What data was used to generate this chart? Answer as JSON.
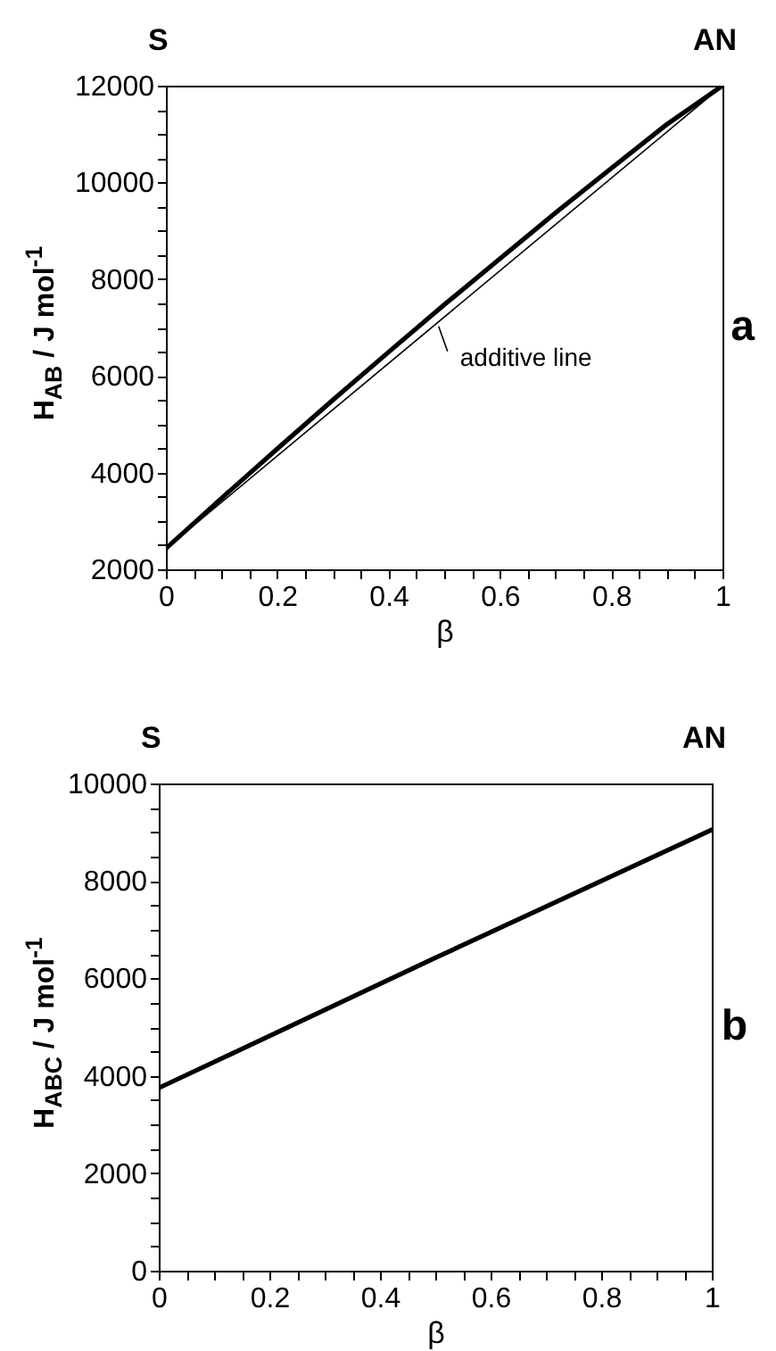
{
  "chart_data": [
    {
      "type": "line",
      "title": "a",
      "xlabel": "β",
      "ylabel": "H$_{AB}$ / J mol$^{-1}$",
      "series": [
        {
          "color": "#000000",
          "x": [
            0,
            0.1,
            0.2,
            0.3,
            0.4,
            0.5,
            0.6,
            0.7,
            0.8,
            0.9,
            1
          ],
          "values": [
            2430,
            3470,
            4490,
            5500,
            6490,
            7470,
            8420,
            9370,
            10290,
            11200,
            12000
          ]
        },
        {
          "color": "#000000",
          "x": [
            0,
            1
          ],
          "values": [
            2430,
            12000
          ]
        }
      ],
      "xlim": [
        0,
        1
      ],
      "ylim": [
        2000,
        12000
      ],
      "xticks": [
        0,
        {
          "value": 0.05,
          "label": null
        },
        {
          "value": 0.1,
          "label": null
        },
        {
          "value": 0.15,
          "label": null
        },
        0.2,
        {
          "value": 0.25,
          "label": null
        },
        {
          "value": 0.3,
          "label": null
        },
        {
          "value": 0.35,
          "label": null
        },
        0.4,
        {
          "value": 0.45,
          "label": null
        },
        {
          "value": 0.5,
          "label": null
        },
        {
          "value": 0.55,
          "label": null
        },
        0.6,
        {
          "value": 0.65,
          "label": null
        },
        {
          "value": 0.7,
          "label": null
        },
        {
          "value": 0.75,
          "label": null
        },
        0.8,
        {
          "value": 0.85,
          "label": null
        },
        {
          "value": 0.9,
          "label": null
        },
        {
          "value": 0.95,
          "label": null
        },
        1
      ],
      "yticks": [
        2000,
        {
          "value": 2500,
          "label": null
        },
        {
          "value": 3000,
          "label": null
        },
        {
          "value": 3500,
          "label": null
        },
        4000,
        {
          "value": 4500,
          "label": null
        },
        {
          "value": 5000,
          "label": null
        },
        {
          "value": 5500,
          "label": null
        },
        6000,
        {
          "value": 6500,
          "label": null
        },
        {
          "value": 7000,
          "label": null
        },
        {
          "value": 7500,
          "label": null
        },
        8000,
        {
          "value": 8500,
          "label": null
        },
        {
          "value": 9000,
          "label": null
        },
        {
          "value": 9500,
          "label": null
        },
        10000,
        {
          "value": 10500,
          "label": null
        },
        {
          "value": 11000,
          "label": null
        },
        {
          "value": 11500,
          "label": null
        },
        12000
      ],
      "annotations": [
        "S",
        "AN",
        {
          "text": "additive line",
          "x": 0.49,
          "y": 7170
        }
      ]
    },
    {
      "type": "line",
      "title": "b",
      "xlabel": "β",
      "ylabel": "H$_{ABC}$ / J mol$^{-1}$",
      "series": [
        {
          "color": "#000000",
          "x": [
            0,
            0.5,
            1
          ],
          "values": [
            3750,
            6420,
            9050
          ]
        }
      ],
      "xlim": [
        0,
        1
      ],
      "ylim": [
        0,
        10000
      ],
      "xticks": [
        0,
        {
          "value": 0.05,
          "label": null
        },
        {
          "value": 0.1,
          "label": null
        },
        {
          "value": 0.15,
          "label": null
        },
        0.2,
        {
          "value": 0.25,
          "label": null
        },
        {
          "value": 0.3,
          "label": null
        },
        {
          "value": 0.35,
          "label": null
        },
        0.4,
        {
          "value": 0.45,
          "label": null
        },
        {
          "value": 0.5,
          "label": null
        },
        {
          "value": 0.55,
          "label": null
        },
        0.6,
        {
          "value": 0.65,
          "label": null
        },
        {
          "value": 0.7,
          "label": null
        },
        {
          "value": 0.75,
          "label": null
        },
        0.8,
        {
          "value": 0.85,
          "label": null
        },
        {
          "value": 0.9,
          "label": null
        },
        {
          "value": 0.95,
          "label": null
        },
        1
      ],
      "yticks": [
        0,
        {
          "value": 500,
          "label": null
        },
        {
          "value": 1000,
          "label": null
        },
        {
          "value": 1500,
          "label": null
        },
        2000,
        {
          "value": 2500,
          "label": null
        },
        {
          "value": 3000,
          "label": null
        },
        {
          "value": 3500,
          "label": null
        },
        4000,
        {
          "value": 4500,
          "label": null
        },
        {
          "value": 5000,
          "label": null
        },
        {
          "value": 5500,
          "label": null
        },
        6000,
        {
          "value": 6500,
          "label": null
        },
        {
          "value": 7000,
          "label": null
        },
        {
          "value": 7500,
          "label": null
        },
        8000,
        {
          "value": 8500,
          "label": null
        },
        {
          "value": 9000,
          "label": null
        },
        {
          "value": 9500,
          "label": null
        },
        10000
      ],
      "annotations": [
        "S",
        "AN"
      ]
    }
  ]
}
